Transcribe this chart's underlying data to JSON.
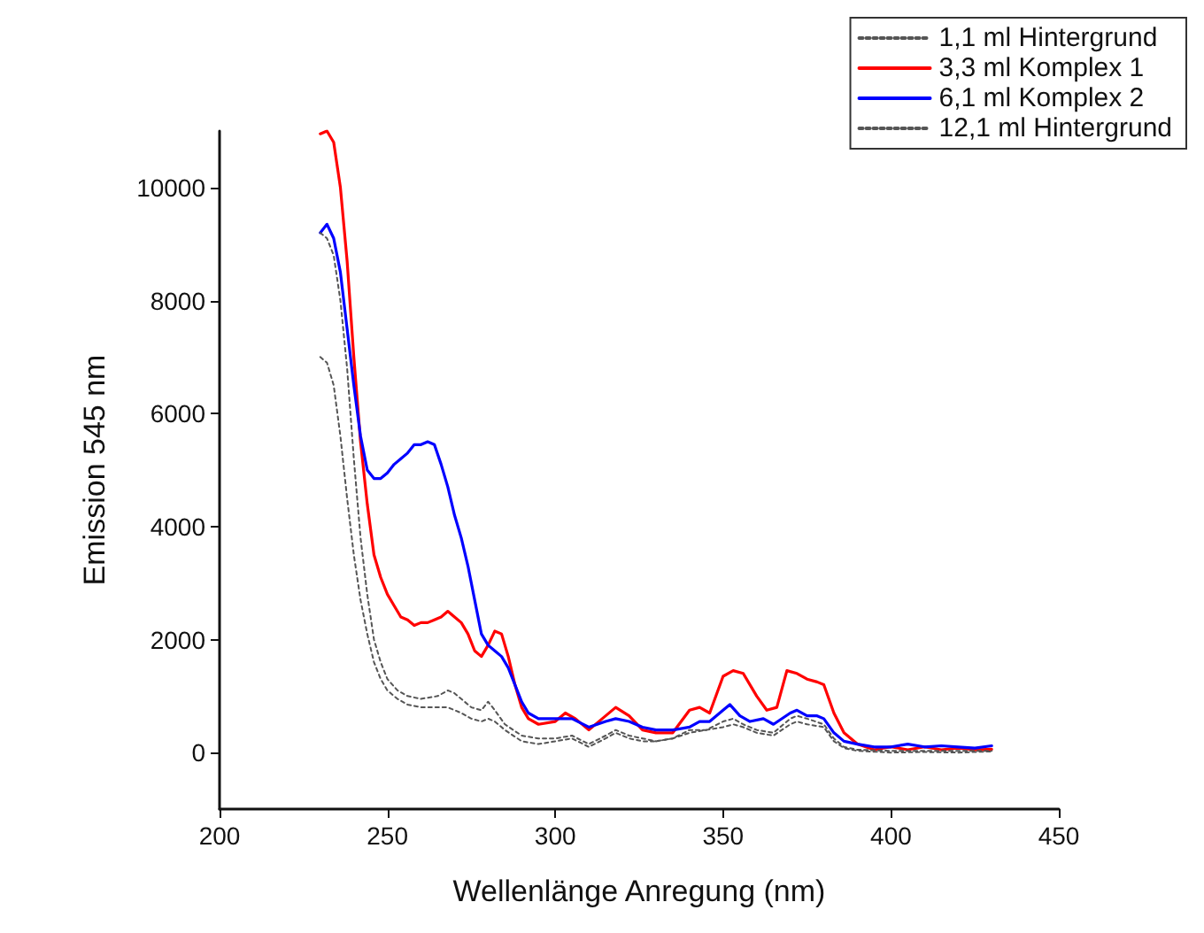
{
  "chart_data": {
    "type": "line",
    "xlabel": "Wellenlänge Anregung (nm)",
    "ylabel": "Emission 545 nm",
    "xlim": [
      200,
      450
    ],
    "ylim": [
      -1000,
      11000
    ],
    "xticks": [
      200,
      250,
      300,
      350,
      400,
      450
    ],
    "yticks": [
      0,
      2000,
      4000,
      6000,
      8000,
      10000
    ],
    "legend": "top right",
    "marker": "none",
    "series": [
      {
        "name": "1,1 ml Hintergrund",
        "color": "#555555",
        "line_style": "dotted",
        "x": [
          230,
          232,
          234,
          236,
          238,
          240,
          242,
          244,
          246,
          248,
          250,
          253,
          256,
          260,
          265,
          268,
          272,
          275,
          278,
          280,
          282,
          285,
          290,
          295,
          300,
          305,
          310,
          315,
          318,
          322,
          326,
          330,
          335,
          340,
          345,
          350,
          353,
          356,
          360,
          365,
          370,
          372,
          375,
          380,
          383,
          386,
          390,
          400,
          410,
          420,
          430
        ],
        "values": [
          7000,
          6900,
          6500,
          5600,
          4500,
          3500,
          2700,
          2100,
          1600,
          1300,
          1100,
          950,
          850,
          800,
          800,
          800,
          700,
          600,
          550,
          600,
          550,
          400,
          200,
          150,
          200,
          250,
          100,
          250,
          350,
          250,
          200,
          200,
          250,
          350,
          400,
          450,
          500,
          450,
          350,
          300,
          500,
          550,
          500,
          450,
          200,
          80,
          30,
          0,
          10,
          0,
          20
        ]
      },
      {
        "name": "3,3 ml Komplex 1",
        "color": "#ff0000",
        "line_style": "solid",
        "x": [
          230,
          232,
          234,
          236,
          238,
          240,
          242,
          244,
          246,
          248,
          250,
          252,
          254,
          256,
          258,
          260,
          262,
          264,
          266,
          268,
          270,
          272,
          274,
          276,
          278,
          280,
          282,
          284,
          286,
          288,
          290,
          292,
          295,
          300,
          303,
          306,
          310,
          314,
          318,
          322,
          326,
          330,
          335,
          340,
          343,
          346,
          350,
          353,
          356,
          360,
          363,
          366,
          369,
          372,
          375,
          378,
          380,
          383,
          386,
          390,
          395,
          400,
          405,
          410,
          415,
          420,
          425,
          430
        ],
        "values": [
          10950,
          11000,
          10800,
          10000,
          8700,
          7000,
          5500,
          4400,
          3500,
          3100,
          2800,
          2600,
          2400,
          2350,
          2250,
          2300,
          2300,
          2350,
          2400,
          2500,
          2400,
          2300,
          2100,
          1800,
          1700,
          1900,
          2150,
          2100,
          1700,
          1200,
          800,
          600,
          500,
          550,
          700,
          600,
          400,
          600,
          800,
          650,
          400,
          350,
          350,
          750,
          800,
          700,
          1350,
          1450,
          1400,
          1000,
          750,
          800,
          1450,
          1400,
          1300,
          1250,
          1200,
          700,
          350,
          150,
          50,
          100,
          50,
          100,
          50,
          80,
          50,
          60
        ]
      },
      {
        "name": "6,1 ml Komplex 2",
        "color": "#0000ff",
        "line_style": "solid",
        "x": [
          230,
          232,
          234,
          236,
          238,
          240,
          242,
          244,
          246,
          248,
          250,
          252,
          254,
          256,
          258,
          260,
          262,
          264,
          266,
          268,
          270,
          272,
          274,
          276,
          278,
          280,
          282,
          284,
          286,
          288,
          290,
          292,
          295,
          300,
          305,
          310,
          315,
          318,
          322,
          326,
          330,
          335,
          340,
          343,
          346,
          350,
          352,
          355,
          358,
          362,
          365,
          370,
          372,
          375,
          378,
          380,
          383,
          386,
          390,
          395,
          400,
          405,
          410,
          415,
          420,
          425,
          430
        ],
        "values": [
          9200,
          9350,
          9100,
          8500,
          7500,
          6500,
          5600,
          5000,
          4850,
          4850,
          4950,
          5100,
          5200,
          5300,
          5450,
          5450,
          5500,
          5450,
          5100,
          4700,
          4200,
          3800,
          3300,
          2700,
          2100,
          1900,
          1800,
          1700,
          1500,
          1200,
          900,
          700,
          600,
          600,
          600,
          450,
          550,
          600,
          550,
          450,
          400,
          400,
          450,
          550,
          550,
          750,
          850,
          650,
          550,
          600,
          500,
          700,
          750,
          650,
          650,
          600,
          350,
          200,
          150,
          100,
          100,
          150,
          100,
          120,
          100,
          80,
          120
        ]
      },
      {
        "name": "12,1 ml Hintergrund",
        "color": "#555555",
        "line_style": "dotted",
        "x": [
          230,
          232,
          234,
          236,
          238,
          240,
          242,
          244,
          246,
          248,
          250,
          253,
          256,
          260,
          265,
          268,
          270,
          272,
          275,
          278,
          280,
          282,
          285,
          290,
          295,
          300,
          305,
          310,
          315,
          318,
          322,
          326,
          330,
          335,
          340,
          345,
          350,
          353,
          356,
          360,
          365,
          370,
          372,
          375,
          380,
          383,
          386,
          390,
          400,
          410,
          420,
          430
        ],
        "values": [
          9200,
          9100,
          8800,
          8000,
          6800,
          5200,
          3800,
          2800,
          2000,
          1600,
          1300,
          1100,
          1000,
          950,
          1000,
          1100,
          1050,
          950,
          800,
          750,
          900,
          750,
          500,
          300,
          250,
          250,
          300,
          150,
          300,
          400,
          300,
          250,
          200,
          250,
          400,
          400,
          550,
          600,
          500,
          400,
          350,
          600,
          650,
          600,
          500,
          250,
          100,
          50,
          30,
          30,
          30,
          30
        ]
      }
    ]
  }
}
